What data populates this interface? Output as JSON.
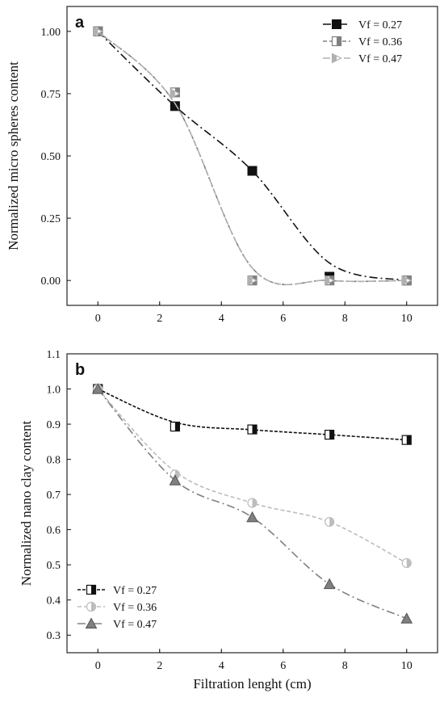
{
  "chart_data": [
    {
      "type": "scatter",
      "panel_label": "a",
      "xlabel": "",
      "ylabel": "Normalized micro spheres content",
      "xlim": [
        -1,
        11
      ],
      "ylim": [
        -0.1,
        1.1
      ],
      "xticks": [
        0,
        2,
        4,
        6,
        8,
        10
      ],
      "yticks": [
        0.0,
        0.25,
        0.5,
        0.75,
        1.0
      ],
      "xtick_labels": [
        "0",
        "2",
        "4",
        "6",
        "8",
        "10"
      ],
      "ytick_labels": [
        "0.00",
        "0.25",
        "0.50",
        "0.75",
        "1.00"
      ],
      "grid": false,
      "legend_position": "top-right",
      "series": [
        {
          "name": "Vf = 0.27",
          "color": "#111111",
          "marker": "square-filled",
          "line_style": "dash-dot",
          "x": [
            0,
            2.5,
            5,
            7.5,
            10
          ],
          "y": [
            1.0,
            0.7,
            0.44,
            0.015,
            0.0
          ],
          "fit_y": [
            1.0,
            0.7,
            0.44,
            0.07,
            0.0
          ]
        },
        {
          "name": "Vf = 0.36",
          "color": "#808080",
          "marker": "square-half",
          "line_style": "dash",
          "x": [
            0,
            2.5,
            5,
            7.5,
            10
          ],
          "y": [
            1.0,
            0.755,
            0.0,
            0.0,
            0.0
          ],
          "fit_y": [
            1.0,
            0.71,
            0.05,
            0.0,
            0.0
          ]
        },
        {
          "name": "Vf = 0.47",
          "color": "#b0b0b0",
          "marker": "triangle-right-half",
          "line_style": "dash-long",
          "x": [
            0,
            2.5,
            5,
            7.5,
            10
          ],
          "y": [
            1.0,
            0.75,
            0.0,
            0.0,
            0.0
          ],
          "fit_y": [
            1.0,
            0.71,
            0.05,
            0.0,
            0.0
          ]
        }
      ]
    },
    {
      "type": "line",
      "panel_label": "b",
      "xlabel": "Filtration lenght (cm)",
      "ylabel": "Normalized nano clay content",
      "xlim": [
        -1,
        11
      ],
      "ylim": [
        0.25,
        1.1
      ],
      "xticks": [
        0,
        2,
        4,
        6,
        8,
        10
      ],
      "yticks": [
        0.3,
        0.4,
        0.5,
        0.6,
        0.7,
        0.8,
        0.9,
        1.0,
        1.1
      ],
      "xtick_labels": [
        "0",
        "2",
        "4",
        "6",
        "8",
        "10"
      ],
      "ytick_labels": [
        "0.3",
        "0.4",
        "0.5",
        "0.6",
        "0.7",
        "0.8",
        "0.9",
        "1.0",
        "1.1"
      ],
      "grid": false,
      "legend_position": "bottom-left",
      "series": [
        {
          "name": "Vf = 0.27",
          "color": "#111111",
          "marker": "square-half",
          "line_style": "dash-fine",
          "x": [
            0,
            2.5,
            5,
            7.5,
            10
          ],
          "y": [
            1.0,
            0.893,
            0.885,
            0.87,
            0.855
          ],
          "fit_y": [
            1.0,
            0.905,
            0.884,
            0.87,
            0.855
          ]
        },
        {
          "name": "Vf = 0.36",
          "color": "#bdbdbd",
          "marker": "circle-half",
          "line_style": "dash",
          "x": [
            0,
            2.5,
            5,
            7.5,
            10
          ],
          "y": [
            1.0,
            0.757,
            0.676,
            0.622,
            0.505
          ],
          "fit_y": [
            1.0,
            0.765,
            0.676,
            0.622,
            0.505
          ]
        },
        {
          "name": "Vf = 0.47",
          "color": "#808080",
          "marker": "triangle-up",
          "line_style": "dash-dot",
          "x": [
            0,
            2.5,
            5,
            7.5,
            10
          ],
          "y": [
            1.0,
            0.74,
            0.635,
            0.445,
            0.347
          ],
          "fit_y": [
            1.0,
            0.74,
            0.635,
            0.445,
            0.347
          ]
        }
      ]
    }
  ]
}
